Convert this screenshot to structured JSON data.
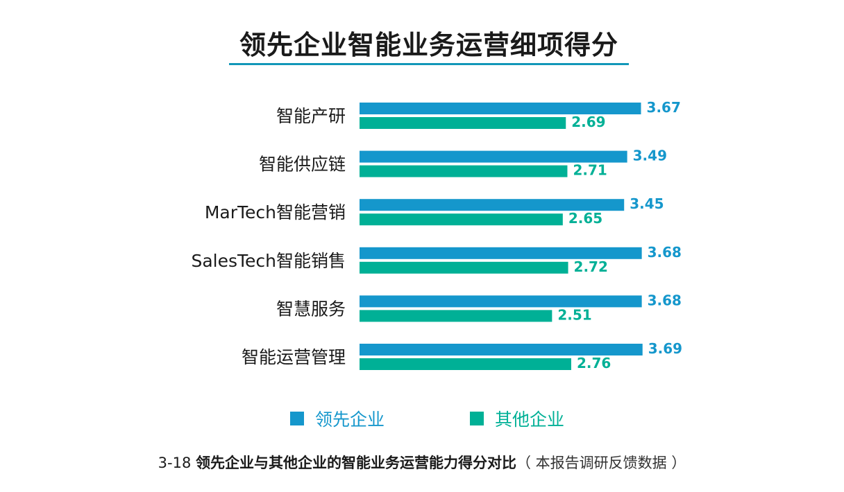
{
  "chart_data": {
    "type": "bar",
    "orientation": "horizontal",
    "title": "领先企业智能业务运营细项得分",
    "categories": [
      "智能产研",
      "智能供应链",
      "MarTech智能营销",
      "SalesTech智能销售",
      "智慧服务",
      "智能运营管理"
    ],
    "series": [
      {
        "name": "领先企业",
        "color": "#1597cc",
        "values": [
          3.67,
          3.49,
          3.45,
          3.68,
          3.68,
          3.69
        ]
      },
      {
        "name": "其他企业",
        "color": "#00b096",
        "values": [
          2.69,
          2.71,
          2.65,
          2.72,
          2.51,
          2.76
        ]
      }
    ],
    "legend_position": "bottom",
    "grid": false
  },
  "caption": {
    "figure_number": "3-18 ",
    "main": "领先企业与其他企业的智能业务运营能力得分对比",
    "note": "（ 本报告调研反馈数据 ）"
  }
}
